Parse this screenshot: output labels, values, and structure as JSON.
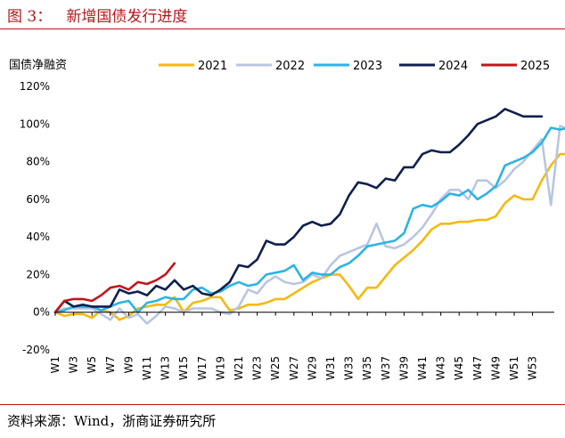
{
  "figure": {
    "title": "图 3：   新增国债发行进度",
    "source": "资料来源：Wind，浙商证券研究所",
    "accent_color": "#b3171b"
  },
  "chart_data": {
    "type": "line",
    "ylabel": "国债净融资",
    "xlabel": "",
    "ylim": [
      -20,
      120
    ],
    "y_ticks": [
      "-20%",
      "0%",
      "20%",
      "40%",
      "60%",
      "80%",
      "100%",
      "120%"
    ],
    "x_ticks": [
      "W1",
      "W3",
      "W5",
      "W7",
      "W9",
      "W11",
      "W13",
      "W15",
      "W17",
      "W19",
      "W21",
      "W23",
      "W25",
      "W27",
      "W29",
      "W31",
      "W33",
      "W35",
      "W37",
      "W39",
      "W41",
      "W43",
      "W45",
      "W47",
      "W49",
      "W51",
      "W53"
    ],
    "legend_position": "top",
    "grid": false,
    "series": [
      {
        "name": "2021",
        "color": "#f5b90f",
        "values": [
          0,
          -2,
          -1,
          -1,
          -3,
          1,
          0,
          -4,
          -2,
          2,
          3,
          4,
          4,
          8,
          0,
          5,
          6,
          8,
          8,
          1,
          2,
          4,
          4,
          5,
          7,
          7,
          10,
          13,
          16,
          18,
          20,
          20,
          14,
          7,
          13,
          13,
          19,
          25,
          29,
          33,
          38,
          44,
          47,
          47,
          48,
          48,
          49,
          49,
          51,
          58,
          62,
          60,
          60,
          70,
          78,
          84,
          84,
          84
        ]
      },
      {
        "name": "2022",
        "color": "#b8c6e0",
        "values": [
          0,
          2,
          2,
          2,
          2,
          -1,
          -4,
          2,
          -3,
          -1,
          -6,
          -2,
          3,
          2,
          0,
          2,
          2,
          2,
          0,
          -1,
          3,
          12,
          10,
          16,
          19,
          16,
          15,
          16,
          20,
          18,
          25,
          30,
          32,
          34,
          36,
          47,
          35,
          34,
          36,
          40,
          45,
          52,
          60,
          65,
          65,
          60,
          70,
          70,
          66,
          70,
          76,
          80,
          86,
          92,
          57,
          99,
          97,
          97
        ]
      },
      {
        "name": "2023",
        "color": "#2db3e3",
        "values": [
          0,
          1,
          3,
          3,
          3,
          1,
          3,
          5,
          6,
          0,
          5,
          6,
          8,
          7,
          7,
          12,
          13,
          10,
          11,
          14,
          16,
          14,
          15,
          20,
          21,
          22,
          25,
          17,
          21,
          20,
          20,
          24,
          26,
          30,
          35,
          36,
          37,
          38,
          42,
          55,
          57,
          56,
          59,
          63,
          62,
          65,
          60,
          63,
          67,
          78,
          80,
          82,
          85,
          90,
          98,
          97,
          98,
          98
        ]
      },
      {
        "name": "2024",
        "color": "#0f1f4e",
        "values": [
          0,
          6,
          3,
          4,
          3,
          3,
          3,
          12,
          10,
          11,
          9,
          14,
          12,
          17,
          12,
          14,
          10,
          9,
          12,
          16,
          25,
          24,
          28,
          38,
          36,
          36,
          40,
          46,
          48,
          46,
          47,
          52,
          62,
          69,
          68,
          66,
          71,
          70,
          77,
          77,
          84,
          86,
          85,
          85,
          89,
          94,
          100,
          102,
          104,
          108,
          106,
          104,
          104,
          104
        ]
      },
      {
        "name": "2025",
        "color": "#c0161c",
        "values": [
          0,
          6,
          7,
          7,
          6,
          9,
          13,
          14,
          12,
          16,
          15,
          17,
          20,
          26
        ]
      }
    ]
  }
}
